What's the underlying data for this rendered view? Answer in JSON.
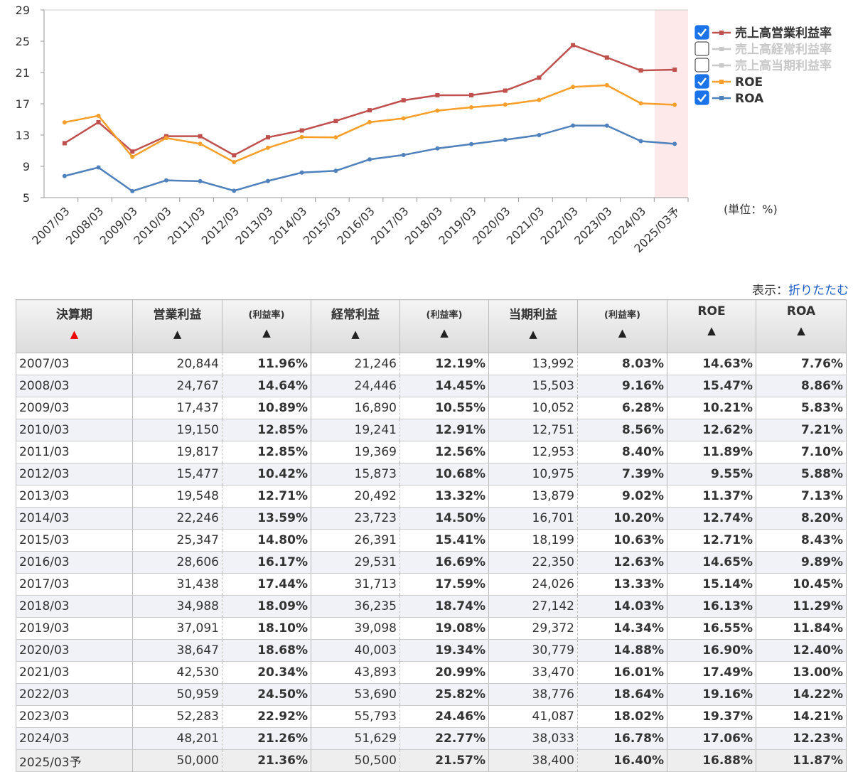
{
  "chart_data": {
    "type": "line",
    "categories": [
      "2007/03",
      "2008/03",
      "2009/03",
      "2010/03",
      "2011/03",
      "2012/03",
      "2013/03",
      "2014/03",
      "2015/03",
      "2016/03",
      "2017/03",
      "2018/03",
      "2019/03",
      "2020/03",
      "2021/03",
      "2022/03",
      "2023/03",
      "2024/03",
      "2025/03予"
    ],
    "series": [
      {
        "name": "売上高営業利益率",
        "color": "#c0504d",
        "checked": true,
        "values": [
          11.96,
          14.64,
          10.89,
          12.85,
          12.85,
          10.42,
          12.71,
          13.59,
          14.8,
          16.17,
          17.44,
          18.09,
          18.1,
          18.68,
          20.34,
          24.5,
          22.92,
          21.26,
          21.36
        ]
      },
      {
        "name": "売上高経常利益率",
        "color": "#c8c8c8",
        "checked": false
      },
      {
        "name": "売上高当期利益率",
        "color": "#c8c8c8",
        "checked": false
      },
      {
        "name": "ROE",
        "color": "#f79f2a",
        "checked": true,
        "values": [
          14.63,
          15.47,
          10.21,
          12.62,
          11.89,
          9.55,
          11.37,
          12.74,
          12.71,
          14.65,
          15.14,
          16.13,
          16.55,
          16.9,
          17.49,
          19.16,
          19.37,
          17.06,
          16.88
        ]
      },
      {
        "name": "ROA",
        "color": "#4f81bd",
        "checked": true,
        "values": [
          7.76,
          8.86,
          5.83,
          7.21,
          7.1,
          5.88,
          7.13,
          8.2,
          8.43,
          9.89,
          10.45,
          11.29,
          11.84,
          12.4,
          13.0,
          14.22,
          14.21,
          12.23,
          11.87
        ]
      }
    ],
    "ylim": [
      5,
      29
    ],
    "yticks": [
      5,
      9,
      13,
      17,
      21,
      25,
      29
    ],
    "grid": false,
    "unit_label": "(単位：%)"
  },
  "display_label": "表示：",
  "collapse_link": "折りたたむ",
  "table": {
    "headers": [
      "決算期",
      "営業利益",
      "(利益率)",
      "経常利益",
      "(利益率)",
      "当期利益",
      "(利益率)",
      "ROE",
      "ROA"
    ],
    "rows": [
      [
        "2007/03",
        "20,844",
        "11.96%",
        "21,246",
        "12.19%",
        "13,992",
        "8.03%",
        "14.63%",
        "7.76%"
      ],
      [
        "2008/03",
        "24,767",
        "14.64%",
        "24,446",
        "14.45%",
        "15,503",
        "9.16%",
        "15.47%",
        "8.86%"
      ],
      [
        "2009/03",
        "17,437",
        "10.89%",
        "16,890",
        "10.55%",
        "10,052",
        "6.28%",
        "10.21%",
        "5.83%"
      ],
      [
        "2010/03",
        "19,150",
        "12.85%",
        "19,241",
        "12.91%",
        "12,751",
        "8.56%",
        "12.62%",
        "7.21%"
      ],
      [
        "2011/03",
        "19,817",
        "12.85%",
        "19,369",
        "12.56%",
        "12,953",
        "8.40%",
        "11.89%",
        "7.10%"
      ],
      [
        "2012/03",
        "15,477",
        "10.42%",
        "15,873",
        "10.68%",
        "10,975",
        "7.39%",
        "9.55%",
        "5.88%"
      ],
      [
        "2013/03",
        "19,548",
        "12.71%",
        "20,492",
        "13.32%",
        "13,879",
        "9.02%",
        "11.37%",
        "7.13%"
      ],
      [
        "2014/03",
        "22,246",
        "13.59%",
        "23,723",
        "14.50%",
        "16,701",
        "10.20%",
        "12.74%",
        "8.20%"
      ],
      [
        "2015/03",
        "25,347",
        "14.80%",
        "26,391",
        "15.41%",
        "18,199",
        "10.63%",
        "12.71%",
        "8.43%"
      ],
      [
        "2016/03",
        "28,606",
        "16.17%",
        "29,531",
        "16.69%",
        "22,350",
        "12.63%",
        "14.65%",
        "9.89%"
      ],
      [
        "2017/03",
        "31,438",
        "17.44%",
        "31,713",
        "17.59%",
        "24,026",
        "13.33%",
        "15.14%",
        "10.45%"
      ],
      [
        "2018/03",
        "34,988",
        "18.09%",
        "36,235",
        "18.74%",
        "27,142",
        "14.03%",
        "16.13%",
        "11.29%"
      ],
      [
        "2019/03",
        "37,091",
        "18.10%",
        "39,098",
        "19.08%",
        "29,372",
        "14.34%",
        "16.55%",
        "11.84%"
      ],
      [
        "2020/03",
        "38,647",
        "18.68%",
        "40,003",
        "19.34%",
        "30,779",
        "14.88%",
        "16.90%",
        "12.40%"
      ],
      [
        "2021/03",
        "42,530",
        "20.34%",
        "43,893",
        "20.99%",
        "33,470",
        "16.01%",
        "17.49%",
        "13.00%"
      ],
      [
        "2022/03",
        "50,959",
        "24.50%",
        "53,690",
        "25.82%",
        "38,776",
        "18.64%",
        "19.16%",
        "14.22%"
      ],
      [
        "2023/03",
        "52,283",
        "22.92%",
        "55,793",
        "24.46%",
        "41,087",
        "18.02%",
        "19.37%",
        "14.21%"
      ],
      [
        "2024/03",
        "48,201",
        "21.26%",
        "51,629",
        "22.77%",
        "38,033",
        "16.78%",
        "17.06%",
        "12.23%"
      ],
      [
        "2025/03予",
        "50,000",
        "21.36%",
        "50,500",
        "21.57%",
        "38,400",
        "16.40%",
        "16.88%",
        "11.87%"
      ]
    ]
  }
}
